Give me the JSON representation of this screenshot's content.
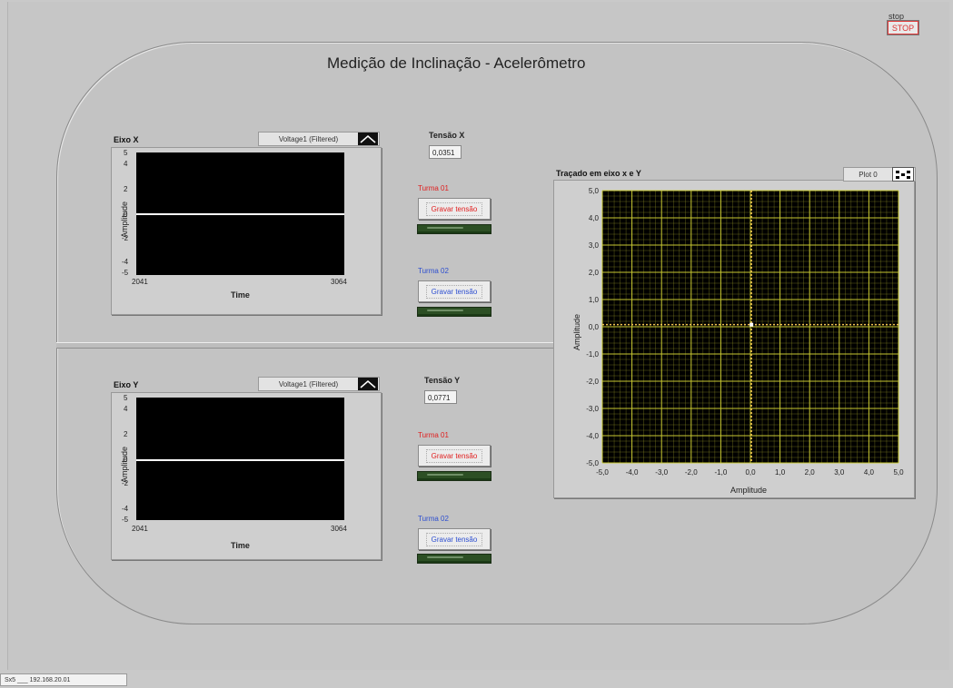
{
  "title": "Medição de Inclinação - Acelerômetro",
  "stop": {
    "label": "stop",
    "button_text": "STOP"
  },
  "status_bar_text": "Sx5 ___ 192.168.20.01",
  "graph_x": {
    "title": "Eixo X",
    "legend": "Voltage1 (Filtered)",
    "y_ticks": [
      "5",
      "4",
      "2",
      "0",
      "-2",
      "-4",
      "-5"
    ],
    "x_start": "2041",
    "x_end": "3064",
    "xlabel": "Time",
    "ylabel": "Amplitude"
  },
  "graph_y": {
    "title": "Eixo Y",
    "legend": "Voltage1 (Filtered)",
    "y_ticks": [
      "5",
      "4",
      "2",
      "0",
      "-2",
      "-4",
      "-5"
    ],
    "x_start": "2041",
    "x_end": "3064",
    "xlabel": "Time",
    "ylabel": "Amplitude"
  },
  "tensao_x": {
    "label": "Tensão X",
    "value": "0,0351"
  },
  "tensao_y": {
    "label": "Tensão Y",
    "value": "0,0771"
  },
  "controls_x": [
    {
      "turma": "Turma 01",
      "button": "Gravar tensão",
      "color": "#e02020"
    },
    {
      "turma": "Turma 02",
      "button": "Gravar tensão",
      "color": "#2e4fd0"
    }
  ],
  "controls_y": [
    {
      "turma": "Turma 01",
      "button": "Gravar tensão",
      "color": "#e02020"
    },
    {
      "turma": "Turma 02",
      "button": "Gravar tensão",
      "color": "#2e4fd0"
    }
  ],
  "xy_graph": {
    "title": "Traçado em eixo x e Y",
    "legend": "Plot 0",
    "xlabel": "Amplitude",
    "ylabel": "Amplitude"
  },
  "chart_data": {
    "type": "scatter",
    "title": "Traçado em eixo x e Y",
    "xlabel": "Amplitude",
    "ylabel": "Amplitude",
    "xlim": [
      -5,
      5
    ],
    "ylim": [
      -5,
      5
    ],
    "ticks": [
      -5,
      -4,
      -3,
      -2,
      -1,
      0,
      1,
      2,
      3,
      4,
      5
    ],
    "tick_labels": [
      "-5,0",
      "-4,0",
      "-3,0",
      "-2,0",
      "-1,0",
      "0,0",
      "1,0",
      "2,0",
      "3,0",
      "4,0",
      "5,0"
    ],
    "grid": true,
    "points": [
      {
        "x": 0.0351,
        "y": 0.0771
      }
    ],
    "colors": {
      "background": "#000000",
      "grid": "#c8c832",
      "cursor": "#f0c050",
      "point": "#ffffff"
    }
  }
}
